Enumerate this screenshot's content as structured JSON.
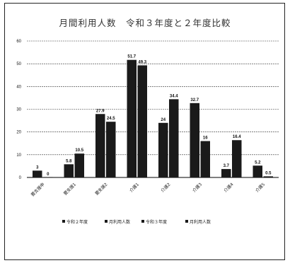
{
  "chart_data": {
    "type": "bar",
    "title": "月間利用人数　令和３年度と２年度比較",
    "xlabel": "",
    "ylabel": "",
    "ylim": [
      0,
      60
    ],
    "yticks": [
      0,
      10,
      20,
      30,
      40,
      50,
      60
    ],
    "grid": true,
    "legend_position": "bottom",
    "categories": [
      "要支援申",
      "要支援1",
      "要支援2",
      "介護1",
      "介護2",
      "介護3",
      "介護4",
      "介護5"
    ],
    "series": [
      {
        "name": "令和２年度",
        "color": "#1a1a1a",
        "values": [
          3,
          5.8,
          27.9,
          51.7,
          24,
          32.7,
          3.7,
          5.2
        ],
        "labels": [
          "3",
          "5.8",
          "27.9",
          "51.7",
          "24",
          "32.7",
          "3.7",
          "5.2"
        ]
      },
      {
        "name": "月利用人数",
        "color": "#1a1a1a",
        "values": [
          0,
          10.5,
          24.5,
          49.3,
          34.4,
          16,
          16.4,
          0.5
        ],
        "labels": [
          "0",
          "10.5",
          "24.5",
          "49.3",
          "34.4",
          "16",
          "16.4",
          "0.5"
        ]
      }
    ],
    "legend": [
      "令和２年度",
      "月利用人数",
      "令和３年度",
      "月利用人数"
    ],
    "colors": {
      "bar": "#1a1a1a",
      "grid": "#333333",
      "frame": "#222222",
      "background": "#ffffff"
    }
  }
}
